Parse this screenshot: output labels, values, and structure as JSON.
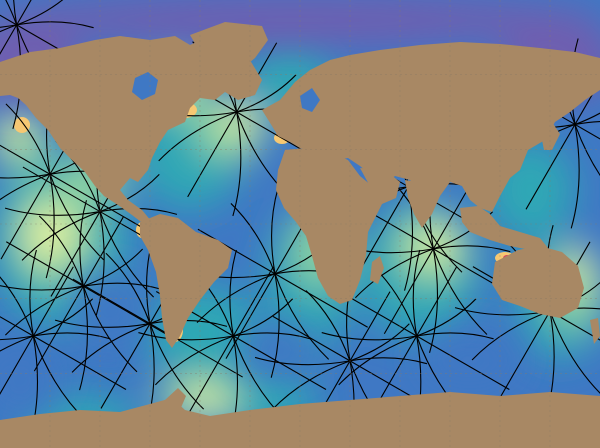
{
  "map": {
    "projection": "equirectangular-world",
    "colors": {
      "ocean_low": "#6e5fb0",
      "ocean_midlow": "#3f78c4",
      "ocean_mid": "#2fa7b5",
      "ocean_midhigh": "#8fd4a0",
      "ocean_high": "#e9f3a2",
      "ocean_peak": "#f6c873",
      "hotspot": "#d9455d",
      "land": "#a88864",
      "cotidal_line": "#000000",
      "graticule": "#8a7a66"
    },
    "amphidromic_points": [
      {
        "id": "n-pacific",
        "lon": -150,
        "lat": 20
      },
      {
        "id": "e-pacific",
        "lon": -120,
        "lat": 5
      },
      {
        "id": "s-pacific-1",
        "lon": -130,
        "lat": -25
      },
      {
        "id": "s-pacific-2",
        "lon": -90,
        "lat": -40
      },
      {
        "id": "s-pacific-3",
        "lon": -160,
        "lat": -45
      },
      {
        "id": "n-atlantic",
        "lon": -38,
        "lat": 45
      },
      {
        "id": "s-atlantic-1",
        "lon": -15,
        "lat": -20
      },
      {
        "id": "s-atlantic-2",
        "lon": -40,
        "lat": -45
      },
      {
        "id": "indian-1",
        "lon": 80,
        "lat": -10
      },
      {
        "id": "indian-2",
        "lon": 70,
        "lat": -45
      },
      {
        "id": "arabian-sea",
        "lon": 65,
        "lat": 15
      },
      {
        "id": "s-ocean",
        "lon": 30,
        "lat": -55
      },
      {
        "id": "arctic",
        "lon": -170,
        "lat": 80
      },
      {
        "id": "w-pacific",
        "lon": 165,
        "lat": 40
      },
      {
        "id": "tasman",
        "lon": 150,
        "lat": -35
      }
    ]
  }
}
